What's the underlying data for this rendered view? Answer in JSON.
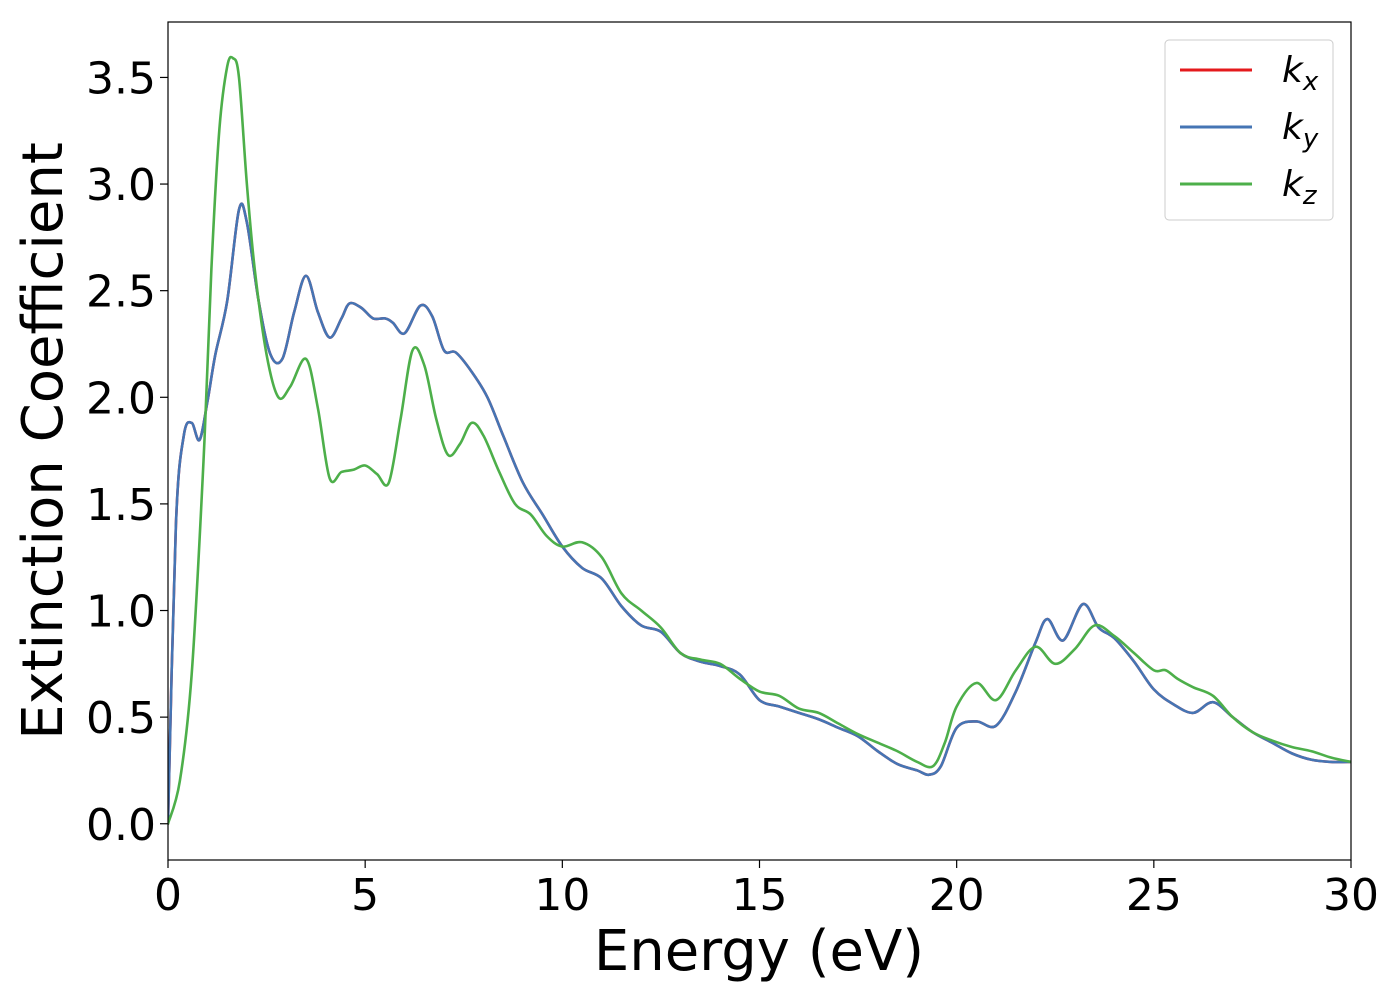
{
  "chart_data": {
    "type": "line",
    "title": "",
    "xlabel": "Energy (eV)",
    "ylabel": "Extinction Coefficient",
    "xlim": [
      0,
      30
    ],
    "ylim": [
      -0.17,
      3.76
    ],
    "xticks": [
      0,
      5,
      10,
      15,
      20,
      25,
      30
    ],
    "xtick_labels": [
      "0",
      "5",
      "10",
      "15",
      "20",
      "25",
      "30"
    ],
    "yticks": [
      0.0,
      0.5,
      1.0,
      1.5,
      2.0,
      2.5,
      3.0,
      3.5
    ],
    "ytick_labels": [
      "0.0",
      "0.5",
      "1.0",
      "1.5",
      "2.0",
      "2.5",
      "3.0",
      "3.5"
    ],
    "grid": false,
    "legend_position": "top-right",
    "series": [
      {
        "name": "k_x",
        "legend_base": "k",
        "legend_sub": "x",
        "color": "#e41a1c",
        "x": [
          0,
          0.2,
          0.4,
          0.6,
          0.8,
          1.0,
          1.2,
          1.5,
          1.8,
          2.0,
          2.3,
          2.6,
          2.9,
          3.2,
          3.5,
          3.8,
          4.1,
          4.4,
          4.6,
          4.9,
          5.2,
          5.5,
          5.7,
          6.0,
          6.4,
          6.7,
          7.0,
          7.3,
          7.7,
          8.1,
          8.5,
          9.0,
          9.5,
          10.0,
          10.5,
          11.0,
          11.5,
          12.0,
          12.5,
          13.0,
          13.5,
          14.0,
          14.5,
          15.0,
          15.5,
          16.0,
          16.5,
          17.0,
          17.5,
          18.0,
          18.5,
          19.0,
          19.3,
          19.6,
          20.0,
          20.5,
          21.0,
          21.5,
          22.0,
          22.3,
          22.7,
          23.2,
          23.6,
          24.0,
          24.5,
          25.0,
          25.5,
          26.0,
          26.5,
          27.0,
          27.5,
          28.0,
          28.5,
          29.0,
          29.5,
          30.0
        ],
        "y": [
          0.0,
          1.4,
          1.82,
          1.88,
          1.8,
          1.98,
          2.2,
          2.45,
          2.88,
          2.82,
          2.45,
          2.2,
          2.18,
          2.4,
          2.57,
          2.4,
          2.28,
          2.37,
          2.44,
          2.42,
          2.37,
          2.37,
          2.35,
          2.3,
          2.43,
          2.38,
          2.22,
          2.21,
          2.12,
          2.0,
          1.82,
          1.6,
          1.45,
          1.3,
          1.2,
          1.15,
          1.02,
          0.93,
          0.9,
          0.8,
          0.76,
          0.74,
          0.7,
          0.58,
          0.55,
          0.52,
          0.49,
          0.45,
          0.41,
          0.34,
          0.28,
          0.25,
          0.23,
          0.27,
          0.45,
          0.48,
          0.46,
          0.62,
          0.85,
          0.96,
          0.86,
          1.03,
          0.92,
          0.87,
          0.76,
          0.63,
          0.56,
          0.52,
          0.57,
          0.5,
          0.43,
          0.38,
          0.33,
          0.3,
          0.29,
          0.29
        ]
      },
      {
        "name": "k_y",
        "legend_base": "k",
        "legend_sub": "y",
        "color": "#4575b4",
        "x": [
          0,
          0.2,
          0.4,
          0.6,
          0.8,
          1.0,
          1.2,
          1.5,
          1.8,
          2.0,
          2.3,
          2.6,
          2.9,
          3.2,
          3.5,
          3.8,
          4.1,
          4.4,
          4.6,
          4.9,
          5.2,
          5.5,
          5.7,
          6.0,
          6.4,
          6.7,
          7.0,
          7.3,
          7.7,
          8.1,
          8.5,
          9.0,
          9.5,
          10.0,
          10.5,
          11.0,
          11.5,
          12.0,
          12.5,
          13.0,
          13.5,
          14.0,
          14.5,
          15.0,
          15.5,
          16.0,
          16.5,
          17.0,
          17.5,
          18.0,
          18.5,
          19.0,
          19.3,
          19.6,
          20.0,
          20.5,
          21.0,
          21.5,
          22.0,
          22.3,
          22.7,
          23.2,
          23.6,
          24.0,
          24.5,
          25.0,
          25.5,
          26.0,
          26.5,
          27.0,
          27.5,
          28.0,
          28.5,
          29.0,
          29.5,
          30.0
        ],
        "y": [
          0.0,
          1.4,
          1.82,
          1.88,
          1.8,
          1.98,
          2.2,
          2.45,
          2.88,
          2.82,
          2.45,
          2.2,
          2.18,
          2.4,
          2.57,
          2.4,
          2.28,
          2.37,
          2.44,
          2.42,
          2.37,
          2.37,
          2.35,
          2.3,
          2.43,
          2.38,
          2.22,
          2.21,
          2.12,
          2.0,
          1.82,
          1.6,
          1.45,
          1.3,
          1.2,
          1.15,
          1.02,
          0.93,
          0.9,
          0.8,
          0.76,
          0.74,
          0.7,
          0.58,
          0.55,
          0.52,
          0.49,
          0.45,
          0.41,
          0.34,
          0.28,
          0.25,
          0.23,
          0.27,
          0.45,
          0.48,
          0.46,
          0.62,
          0.85,
          0.96,
          0.86,
          1.03,
          0.92,
          0.87,
          0.76,
          0.63,
          0.56,
          0.52,
          0.57,
          0.5,
          0.43,
          0.38,
          0.33,
          0.3,
          0.29,
          0.29
        ]
      },
      {
        "name": "k_z",
        "legend_base": "k",
        "legend_sub": "z",
        "color": "#4daf4a",
        "x": [
          0,
          0.3,
          0.6,
          0.9,
          1.1,
          1.3,
          1.5,
          1.65,
          1.8,
          2.0,
          2.2,
          2.5,
          2.8,
          3.1,
          3.5,
          3.8,
          4.1,
          4.4,
          4.7,
          5.0,
          5.3,
          5.6,
          5.9,
          6.2,
          6.5,
          6.8,
          7.1,
          7.4,
          7.7,
          8.0,
          8.4,
          8.8,
          9.2,
          9.6,
          10.0,
          10.5,
          11.0,
          11.5,
          12.0,
          12.5,
          13.0,
          13.5,
          14.0,
          14.5,
          15.0,
          15.5,
          16.0,
          16.5,
          17.0,
          17.5,
          18.0,
          18.5,
          19.0,
          19.4,
          19.7,
          20.0,
          20.5,
          21.0,
          21.5,
          22.0,
          22.5,
          23.0,
          23.5,
          24.0,
          24.5,
          25.0,
          25.3,
          25.6,
          26.0,
          26.5,
          27.0,
          27.5,
          28.0,
          28.5,
          29.0,
          29.5,
          30.0
        ],
        "y": [
          0.0,
          0.2,
          0.7,
          1.7,
          2.6,
          3.25,
          3.55,
          3.59,
          3.5,
          3.0,
          2.6,
          2.2,
          2.0,
          2.05,
          2.18,
          1.95,
          1.62,
          1.65,
          1.66,
          1.68,
          1.64,
          1.6,
          1.9,
          2.22,
          2.15,
          1.9,
          1.73,
          1.78,
          1.88,
          1.82,
          1.65,
          1.5,
          1.45,
          1.35,
          1.3,
          1.32,
          1.25,
          1.08,
          1.0,
          0.92,
          0.8,
          0.77,
          0.75,
          0.68,
          0.62,
          0.6,
          0.54,
          0.52,
          0.47,
          0.42,
          0.38,
          0.34,
          0.29,
          0.27,
          0.38,
          0.55,
          0.66,
          0.58,
          0.72,
          0.83,
          0.75,
          0.82,
          0.93,
          0.88,
          0.8,
          0.72,
          0.72,
          0.68,
          0.64,
          0.6,
          0.5,
          0.43,
          0.39,
          0.36,
          0.34,
          0.31,
          0.29
        ]
      }
    ]
  }
}
